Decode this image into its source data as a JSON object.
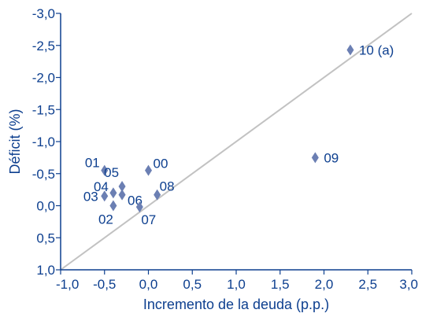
{
  "chart_data": {
    "type": "scatter",
    "title": "",
    "xlabel": "Incremento de la deuda (p.p.)",
    "ylabel": "Déficit (%)",
    "xlim": [
      -1.0,
      3.0
    ],
    "ylim": [
      1.0,
      -3.0
    ],
    "x_ticks": [
      "-1,0",
      "-0,5",
      "0,0",
      "0,5",
      "1,0",
      "1,5",
      "2,0",
      "2,5",
      "3,0"
    ],
    "y_ticks": [
      "-3,0",
      "-2,5",
      "-2,0",
      "-1,5",
      "-1,0",
      "-0,5",
      "0,0",
      "0,5",
      "1,0"
    ],
    "grid": false,
    "reference_line": {
      "from": [
        -1.0,
        1.0
      ],
      "to": [
        3.0,
        -3.0
      ],
      "color": "#c2c2c2"
    },
    "marker_color": "#6b7fb3",
    "text_color": "#0d3f8f",
    "points": [
      {
        "label": "00",
        "x": 0.0,
        "y": -0.55
      },
      {
        "label": "01",
        "x": -0.5,
        "y": -0.55
      },
      {
        "label": "02",
        "x": -0.4,
        "y": 0.0
      },
      {
        "label": "03",
        "x": -0.5,
        "y": -0.15
      },
      {
        "label": "04",
        "x": -0.4,
        "y": -0.2
      },
      {
        "label": "05",
        "x": -0.3,
        "y": -0.3
      },
      {
        "label": "06",
        "x": -0.3,
        "y": -0.17
      },
      {
        "label": "07",
        "x": -0.1,
        "y": 0.02
      },
      {
        "label": "08",
        "x": 0.1,
        "y": -0.17
      },
      {
        "label": "09",
        "x": 1.9,
        "y": -0.75
      },
      {
        "label": "10 (a)",
        "x": 2.3,
        "y": -2.43
      }
    ]
  }
}
